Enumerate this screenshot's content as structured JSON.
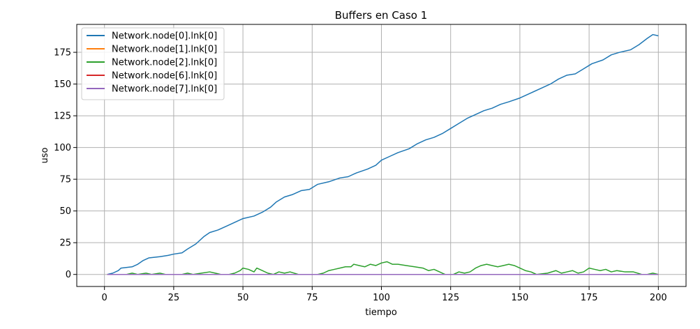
{
  "chart_data": {
    "type": "line",
    "title": "Buffers en Caso 1",
    "xlabel": "tiempo",
    "ylabel": "uso",
    "xlim": [
      -10,
      210
    ],
    "ylim": [
      -9.5,
      197
    ],
    "xticks": [
      0,
      25,
      50,
      75,
      100,
      125,
      150,
      175,
      200
    ],
    "yticks": [
      0,
      25,
      50,
      75,
      100,
      125,
      150,
      175
    ],
    "grid": true,
    "legend_position": "top-left",
    "series": [
      {
        "name": "Network.node[0].lnk[0]",
        "color": "#1f77b4",
        "points": [
          [
            1,
            0
          ],
          [
            3,
            1
          ],
          [
            5,
            3
          ],
          [
            6,
            5
          ],
          [
            10,
            6
          ],
          [
            12,
            8
          ],
          [
            14,
            11
          ],
          [
            16,
            13
          ],
          [
            20,
            14
          ],
          [
            23,
            15
          ],
          [
            25,
            16
          ],
          [
            28,
            17
          ],
          [
            30,
            20
          ],
          [
            33,
            24
          ],
          [
            36,
            30
          ],
          [
            38,
            33
          ],
          [
            41,
            35
          ],
          [
            44,
            38
          ],
          [
            47,
            41
          ],
          [
            50,
            44
          ],
          [
            54,
            46
          ],
          [
            57,
            49
          ],
          [
            60,
            53
          ],
          [
            62,
            57
          ],
          [
            65,
            61
          ],
          [
            68,
            63
          ],
          [
            71,
            66
          ],
          [
            74,
            67
          ],
          [
            77,
            71
          ],
          [
            81,
            73
          ],
          [
            85,
            76
          ],
          [
            88,
            77
          ],
          [
            91,
            80
          ],
          [
            95,
            83
          ],
          [
            98,
            86
          ],
          [
            100,
            90
          ],
          [
            103,
            93
          ],
          [
            106,
            96
          ],
          [
            110,
            99
          ],
          [
            113,
            103
          ],
          [
            116,
            106
          ],
          [
            119,
            108
          ],
          [
            122,
            111
          ],
          [
            125,
            115
          ],
          [
            128,
            119
          ],
          [
            131,
            123
          ],
          [
            134,
            126
          ],
          [
            137,
            129
          ],
          [
            140,
            131
          ],
          [
            143,
            134
          ],
          [
            146,
            136
          ],
          [
            150,
            139
          ],
          [
            154,
            143
          ],
          [
            158,
            147
          ],
          [
            161,
            150
          ],
          [
            164,
            154
          ],
          [
            167,
            157
          ],
          [
            170,
            158
          ],
          [
            173,
            162
          ],
          [
            176,
            166
          ],
          [
            180,
            169
          ],
          [
            183,
            173
          ],
          [
            186,
            175
          ],
          [
            190,
            177
          ],
          [
            193,
            181
          ],
          [
            196,
            186
          ],
          [
            198,
            189
          ],
          [
            200,
            188
          ]
        ]
      },
      {
        "name": "Network.node[1].lnk[0]",
        "color": "#ff7f0e",
        "points": [
          [
            1,
            0
          ],
          [
            200,
            0
          ]
        ]
      },
      {
        "name": "Network.node[2].lnk[0]",
        "color": "#2ca02c",
        "points": [
          [
            1,
            0
          ],
          [
            8,
            0
          ],
          [
            10,
            1
          ],
          [
            12,
            0
          ],
          [
            15,
            1
          ],
          [
            17,
            0
          ],
          [
            20,
            1
          ],
          [
            22,
            0
          ],
          [
            28,
            0
          ],
          [
            30,
            1
          ],
          [
            32,
            0
          ],
          [
            35,
            1
          ],
          [
            38,
            2
          ],
          [
            40,
            1
          ],
          [
            42,
            0
          ],
          [
            45,
            0
          ],
          [
            47,
            1
          ],
          [
            49,
            3
          ],
          [
            50,
            5
          ],
          [
            52,
            4
          ],
          [
            54,
            2
          ],
          [
            55,
            5
          ],
          [
            57,
            3
          ],
          [
            59,
            1
          ],
          [
            61,
            0
          ],
          [
            63,
            2
          ],
          [
            65,
            1
          ],
          [
            67,
            2
          ],
          [
            70,
            0
          ],
          [
            77,
            0
          ],
          [
            79,
            1
          ],
          [
            81,
            3
          ],
          [
            83,
            4
          ],
          [
            85,
            5
          ],
          [
            87,
            6
          ],
          [
            89,
            6
          ],
          [
            90,
            8
          ],
          [
            92,
            7
          ],
          [
            94,
            6
          ],
          [
            96,
            8
          ],
          [
            98,
            7
          ],
          [
            100,
            9
          ],
          [
            102,
            10
          ],
          [
            104,
            8
          ],
          [
            106,
            8
          ],
          [
            109,
            7
          ],
          [
            112,
            6
          ],
          [
            115,
            5
          ],
          [
            117,
            3
          ],
          [
            119,
            4
          ],
          [
            121,
            2
          ],
          [
            123,
            0
          ],
          [
            126,
            0
          ],
          [
            128,
            2
          ],
          [
            130,
            1
          ],
          [
            132,
            2
          ],
          [
            134,
            5
          ],
          [
            136,
            7
          ],
          [
            138,
            8
          ],
          [
            140,
            7
          ],
          [
            142,
            6
          ],
          [
            144,
            7
          ],
          [
            146,
            8
          ],
          [
            148,
            7
          ],
          [
            150,
            5
          ],
          [
            152,
            3
          ],
          [
            154,
            2
          ],
          [
            156,
            0
          ],
          [
            160,
            1
          ],
          [
            163,
            3
          ],
          [
            165,
            1
          ],
          [
            167,
            2
          ],
          [
            169,
            3
          ],
          [
            171,
            1
          ],
          [
            173,
            2
          ],
          [
            175,
            5
          ],
          [
            177,
            4
          ],
          [
            179,
            3
          ],
          [
            181,
            4
          ],
          [
            183,
            2
          ],
          [
            185,
            3
          ],
          [
            188,
            2
          ],
          [
            191,
            2
          ],
          [
            194,
            0
          ],
          [
            196,
            0
          ],
          [
            198,
            1
          ],
          [
            200,
            0
          ]
        ]
      },
      {
        "name": "Network.node[6].lnk[0]",
        "color": "#d62728",
        "points": [
          [
            1,
            0
          ],
          [
            200,
            0
          ]
        ]
      },
      {
        "name": "Network.node[7].lnk[0]",
        "color": "#9467bd",
        "points": [
          [
            1,
            0
          ],
          [
            200,
            0
          ]
        ]
      }
    ]
  }
}
